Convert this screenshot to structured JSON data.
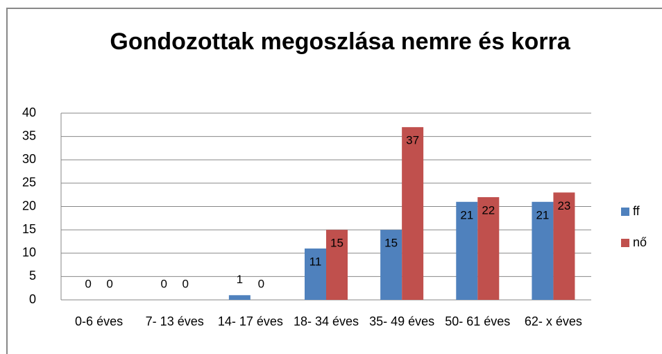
{
  "chart_data": {
    "type": "bar",
    "title": "Gondozottak megoszlása nemre és korra",
    "categories": [
      "0-6 éves",
      "7- 13 éves",
      "14- 17 éves",
      "18- 34 éves",
      "35- 49 éves",
      "50- 61 éves",
      "62- x éves"
    ],
    "series": [
      {
        "name": "ff",
        "color": "#4f81bd",
        "values": [
          0,
          0,
          1,
          11,
          15,
          21,
          21
        ]
      },
      {
        "name": "nő",
        "color": "#c0504d",
        "values": [
          0,
          0,
          0,
          15,
          37,
          22,
          23
        ]
      }
    ],
    "ylim": [
      0,
      40
    ],
    "yticks": [
      0,
      5,
      10,
      15,
      20,
      25,
      30,
      35,
      40
    ],
    "grid": true,
    "legend": "right"
  }
}
